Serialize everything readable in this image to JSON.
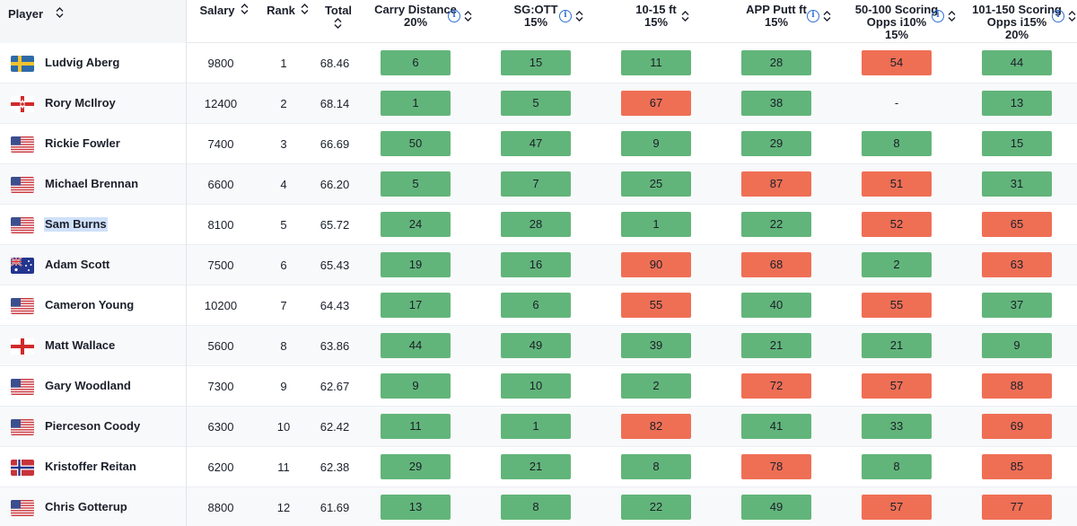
{
  "header": {
    "player": "Player",
    "salary": "Salary",
    "rank": "Rank",
    "total": "Total",
    "stats": [
      {
        "line1": "Carry Distance",
        "line2": "20%",
        "line3": ""
      },
      {
        "line1": "SG:OTT",
        "line2": "15%",
        "line3": ""
      },
      {
        "line1": "10-15 ft",
        "line2": "15%",
        "line3": ""
      },
      {
        "line1": "APP Putt ft",
        "line2": "15%",
        "line3": ""
      },
      {
        "line1": "50-100 Scoring",
        "line2": "Opps i10%",
        "line3": "15%"
      },
      {
        "line1": "101-150 Scoring",
        "line2": "Opps i15%",
        "line3": "20%"
      }
    ]
  },
  "colors": {
    "good": "#62b57a",
    "bad": "#ef6f55",
    "info": "#2f6fd6",
    "selection": "#cfe0f9"
  },
  "rows": [
    {
      "flag": "sweden-flag-icon",
      "player": "Ludvig Aberg",
      "salary": "9800",
      "rank": "1",
      "total": "68.46",
      "stats": [
        {
          "v": "6",
          "s": "good"
        },
        {
          "v": "15",
          "s": "good"
        },
        {
          "v": "11",
          "s": "good"
        },
        {
          "v": "28",
          "s": "good"
        },
        {
          "v": "54",
          "s": "bad"
        },
        {
          "v": "44",
          "s": "good"
        }
      ]
    },
    {
      "flag": "northern-ireland-flag-icon",
      "player": "Rory McIlroy",
      "salary": "12400",
      "rank": "2",
      "total": "68.14",
      "stats": [
        {
          "v": "1",
          "s": "good"
        },
        {
          "v": "5",
          "s": "good"
        },
        {
          "v": "67",
          "s": "bad"
        },
        {
          "v": "38",
          "s": "good"
        },
        {
          "v": "-",
          "s": "none"
        },
        {
          "v": "13",
          "s": "good"
        }
      ]
    },
    {
      "flag": "usa-flag-icon",
      "player": "Rickie Fowler",
      "salary": "7400",
      "rank": "3",
      "total": "66.69",
      "stats": [
        {
          "v": "50",
          "s": "good"
        },
        {
          "v": "47",
          "s": "good"
        },
        {
          "v": "9",
          "s": "good"
        },
        {
          "v": "29",
          "s": "good"
        },
        {
          "v": "8",
          "s": "good"
        },
        {
          "v": "15",
          "s": "good"
        }
      ]
    },
    {
      "flag": "usa-flag-icon",
      "player": "Michael Brennan",
      "salary": "6600",
      "rank": "4",
      "total": "66.20",
      "stats": [
        {
          "v": "5",
          "s": "good"
        },
        {
          "v": "7",
          "s": "good"
        },
        {
          "v": "25",
          "s": "good"
        },
        {
          "v": "87",
          "s": "bad"
        },
        {
          "v": "51",
          "s": "bad"
        },
        {
          "v": "31",
          "s": "good"
        }
      ]
    },
    {
      "flag": "usa-flag-icon",
      "player": "Sam Burns",
      "salary": "8100",
      "rank": "5",
      "total": "65.72",
      "selected": true,
      "stats": [
        {
          "v": "24",
          "s": "good"
        },
        {
          "v": "28",
          "s": "good"
        },
        {
          "v": "1",
          "s": "good"
        },
        {
          "v": "22",
          "s": "good"
        },
        {
          "v": "52",
          "s": "bad"
        },
        {
          "v": "65",
          "s": "bad"
        }
      ]
    },
    {
      "flag": "australia-flag-icon",
      "player": "Adam Scott",
      "salary": "7500",
      "rank": "6",
      "total": "65.43",
      "stats": [
        {
          "v": "19",
          "s": "good"
        },
        {
          "v": "16",
          "s": "good"
        },
        {
          "v": "90",
          "s": "bad"
        },
        {
          "v": "68",
          "s": "bad"
        },
        {
          "v": "2",
          "s": "good"
        },
        {
          "v": "63",
          "s": "bad"
        }
      ]
    },
    {
      "flag": "usa-flag-icon",
      "player": "Cameron Young",
      "salary": "10200",
      "rank": "7",
      "total": "64.43",
      "stats": [
        {
          "v": "17",
          "s": "good"
        },
        {
          "v": "6",
          "s": "good"
        },
        {
          "v": "55",
          "s": "bad"
        },
        {
          "v": "40",
          "s": "good"
        },
        {
          "v": "55",
          "s": "bad"
        },
        {
          "v": "37",
          "s": "good"
        }
      ]
    },
    {
      "flag": "england-flag-icon",
      "player": "Matt Wallace",
      "salary": "5600",
      "rank": "8",
      "total": "63.86",
      "stats": [
        {
          "v": "44",
          "s": "good"
        },
        {
          "v": "49",
          "s": "good"
        },
        {
          "v": "39",
          "s": "good"
        },
        {
          "v": "21",
          "s": "good"
        },
        {
          "v": "21",
          "s": "good"
        },
        {
          "v": "9",
          "s": "good"
        }
      ]
    },
    {
      "flag": "usa-flag-icon",
      "player": "Gary Woodland",
      "salary": "7300",
      "rank": "9",
      "total": "62.67",
      "stats": [
        {
          "v": "9",
          "s": "good"
        },
        {
          "v": "10",
          "s": "good"
        },
        {
          "v": "2",
          "s": "good"
        },
        {
          "v": "72",
          "s": "bad"
        },
        {
          "v": "57",
          "s": "bad"
        },
        {
          "v": "88",
          "s": "bad"
        }
      ]
    },
    {
      "flag": "usa-flag-icon",
      "player": "Pierceson Coody",
      "salary": "6300",
      "rank": "10",
      "total": "62.42",
      "stats": [
        {
          "v": "11",
          "s": "good"
        },
        {
          "v": "1",
          "s": "good"
        },
        {
          "v": "82",
          "s": "bad"
        },
        {
          "v": "41",
          "s": "good"
        },
        {
          "v": "33",
          "s": "good"
        },
        {
          "v": "69",
          "s": "bad"
        }
      ]
    },
    {
      "flag": "norway-flag-icon",
      "player": "Kristoffer Reitan",
      "salary": "6200",
      "rank": "11",
      "total": "62.38",
      "stats": [
        {
          "v": "29",
          "s": "good"
        },
        {
          "v": "21",
          "s": "good"
        },
        {
          "v": "8",
          "s": "good"
        },
        {
          "v": "78",
          "s": "bad"
        },
        {
          "v": "8",
          "s": "good"
        },
        {
          "v": "85",
          "s": "bad"
        }
      ]
    },
    {
      "flag": "usa-flag-icon",
      "player": "Chris Gotterup",
      "salary": "8800",
      "rank": "12",
      "total": "61.69",
      "stats": [
        {
          "v": "13",
          "s": "good"
        },
        {
          "v": "8",
          "s": "good"
        },
        {
          "v": "22",
          "s": "good"
        },
        {
          "v": "49",
          "s": "good"
        },
        {
          "v": "57",
          "s": "bad"
        },
        {
          "v": "77",
          "s": "bad"
        }
      ]
    }
  ]
}
